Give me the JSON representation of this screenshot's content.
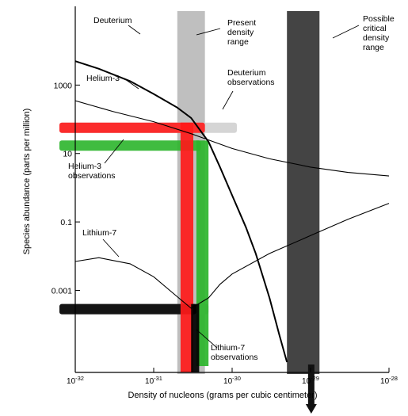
{
  "chart_data": {
    "type": "line",
    "title": "",
    "xlabel": "Density of nucleons (grams per cubic centimeter)",
    "ylabel": "Species abundance (parts per million)",
    "xscale": "log",
    "yscale": "log",
    "xlim": [
      1e-32,
      1e-28
    ],
    "ylim": [
      4e-06,
      200000
    ],
    "x_ticks": [
      {
        "value": 1e-32,
        "label": "10^-32"
      },
      {
        "value": 1e-31,
        "label": "10^-31"
      },
      {
        "value": 1e-30,
        "label": "10^-30"
      },
      {
        "value": 1e-29,
        "label": "10^-29"
      },
      {
        "value": 1e-28,
        "label": "10^-28"
      }
    ],
    "y_ticks": [
      {
        "value": 1000,
        "label": "1000"
      },
      {
        "value": 10,
        "label": "10"
      },
      {
        "value": 0.1,
        "label": "0.1"
      },
      {
        "value": 0.001,
        "label": "0.001"
      }
    ],
    "series": [
      {
        "name": "Deuterium",
        "color": "#000000",
        "points": [
          [
            1e-32,
            5000
          ],
          [
            2e-32,
            3000
          ],
          [
            5e-32,
            1300
          ],
          [
            1e-31,
            550
          ],
          [
            2e-31,
            220
          ],
          [
            3e-31,
            110
          ],
          [
            5e-31,
            22
          ],
          [
            7e-31,
            4
          ],
          [
            1e-30,
            0.6
          ],
          [
            1.5e-30,
            0.07
          ],
          [
            2e-30,
            0.012
          ],
          [
            3e-30,
            0.0006
          ],
          [
            4e-30,
            5e-05
          ],
          [
            5e-30,
            8e-06
          ]
        ]
      },
      {
        "name": "Helium-3",
        "color": "#000000",
        "points": [
          [
            1e-32,
            350
          ],
          [
            3e-32,
            170
          ],
          [
            1e-31,
            85
          ],
          [
            3e-31,
            38
          ],
          [
            1e-30,
            14
          ],
          [
            3e-30,
            7
          ],
          [
            1e-29,
            4
          ],
          [
            3e-29,
            2.8
          ],
          [
            1e-28,
            2.2
          ]
        ]
      },
      {
        "name": "Lithium-7",
        "color": "#000000",
        "points": [
          [
            1e-32,
            0.007
          ],
          [
            2e-32,
            0.009
          ],
          [
            5e-32,
            0.006
          ],
          [
            1e-31,
            0.0025
          ],
          [
            2e-31,
            0.00065
          ],
          [
            3e-31,
            0.0003
          ],
          [
            5e-31,
            0.0006
          ],
          [
            7e-31,
            0.0015
          ],
          [
            1e-30,
            0.003
          ],
          [
            3e-30,
            0.012
          ],
          [
            1e-29,
            0.04
          ],
          [
            3e-29,
            0.12
          ],
          [
            1e-28,
            0.35
          ]
        ]
      }
    ],
    "bands": [
      {
        "name": "Present density range",
        "x_range": [
          2e-31,
          4.5e-31
        ],
        "color": "#b4b4b4"
      },
      {
        "name": "Possible critical density range",
        "x_range": [
          5e-30,
          1.3e-29
        ],
        "color": "#3a3a3a"
      }
    ],
    "observations": [
      {
        "name": "Deuterium observations",
        "y_range": [
          40,
          80
        ],
        "x_range": [
          1e-32,
          1.15e-30
        ],
        "color": "#d0d0d0"
      },
      {
        "name": "Deuterium observations",
        "y_range": [
          40,
          80
        ],
        "x_range": [
          1e-32,
          4.5e-31
        ],
        "color": "#ff1a1a"
      },
      {
        "name": "Helium-3 observations",
        "y_range": [
          12,
          24
        ],
        "x_range": [
          1e-32,
          4e-31
        ],
        "color": "#2bb52b"
      },
      {
        "name": "Lithium-7 observations",
        "y_range": [
          0.0002,
          0.0004
        ],
        "x_range": [
          1e-32,
          5e-31
        ],
        "color": "#c8c8c8"
      },
      {
        "name": "Lithium-7 observations",
        "y_range": [
          0.0002,
          0.0004
        ],
        "x_range": [
          1e-32,
          3.5e-31
        ],
        "color": "#000000"
      }
    ],
    "annotations": [
      {
        "text": "Deuterium"
      },
      {
        "text": "Helium-3"
      },
      {
        "text": "Helium-3\nobservations"
      },
      {
        "text": "Lithium-7"
      },
      {
        "text": "Lithium-7\nobservations"
      },
      {
        "text": "Present\ndensity\nrange"
      },
      {
        "text": "Possible\ncritical\ndensity\nrange"
      },
      {
        "text": "Deuterium\nobservations"
      },
      {
        "text": "1000"
      },
      {
        "text": "10"
      },
      {
        "text": "0.1"
      },
      {
        "text": "0.001"
      }
    ]
  }
}
